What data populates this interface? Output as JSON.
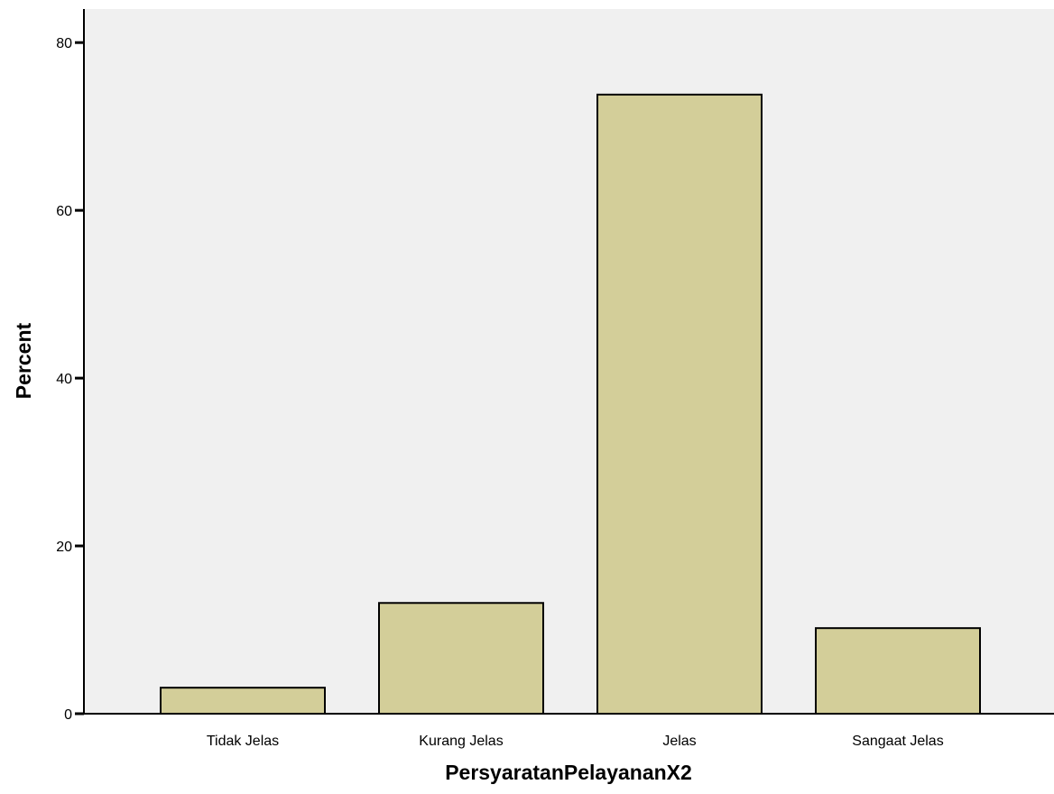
{
  "chart_data": {
    "type": "bar",
    "categories": [
      "Tidak Jelas",
      "Kurang Jelas",
      "Jelas",
      "Sangaat Jelas"
    ],
    "values": [
      3.1,
      13.2,
      73.8,
      10.2
    ],
    "xlabel": "PersyaratanPelayananX2",
    "ylabel": "Percent",
    "ylim": [
      0,
      84
    ],
    "yticks": [
      0,
      20,
      40,
      60,
      80
    ],
    "grid": false,
    "colors": {
      "bar_fill": "#d3ce99",
      "plot_background": "#f0f0f0"
    }
  }
}
